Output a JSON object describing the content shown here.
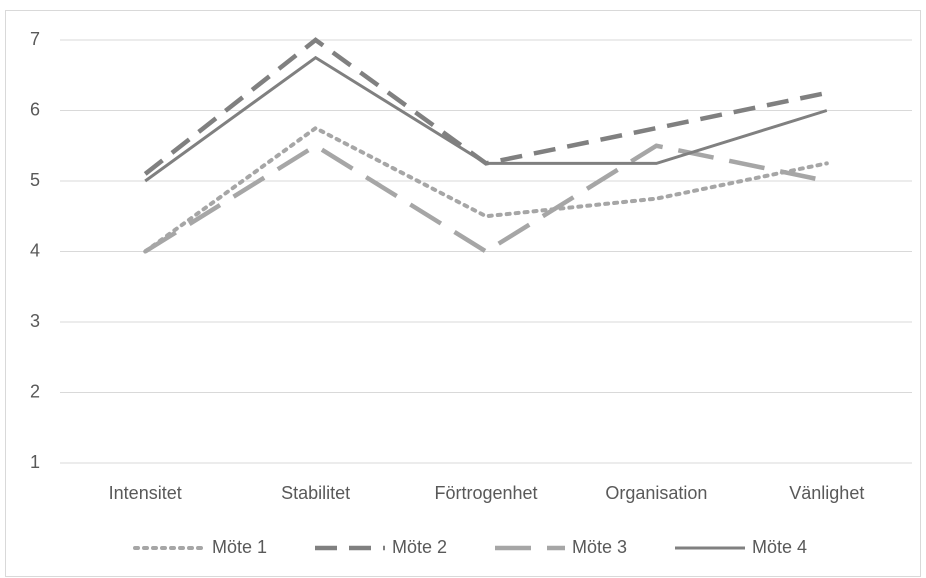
{
  "chart_data": {
    "type": "line",
    "categories": [
      "Intensitet",
      "Stabilitet",
      "Förtrogenhet",
      "Organisation",
      "Vänlighet"
    ],
    "series": [
      {
        "name": "Möte 1",
        "color": "#a6a6a6",
        "dash": "dotted",
        "values": [
          4,
          5.75,
          4.5,
          4.75,
          5.25
        ]
      },
      {
        "name": "Möte 2",
        "color": "#808080",
        "dash": "dashed",
        "values": [
          5.1,
          7,
          5.25,
          5.75,
          6.25
        ]
      },
      {
        "name": "Möte 3",
        "color": "#a6a6a6",
        "dash": "long-dash",
        "values": [
          4,
          5.5,
          4,
          5.5,
          5
        ]
      },
      {
        "name": "Möte 4",
        "color": "#808080",
        "dash": "solid",
        "values": [
          5,
          6.75,
          5.25,
          5.25,
          6
        ]
      }
    ],
    "ylim": [
      1,
      7
    ],
    "yticks": [
      1,
      2,
      3,
      4,
      5,
      6,
      7
    ],
    "grid": true,
    "legend": "bottom"
  }
}
